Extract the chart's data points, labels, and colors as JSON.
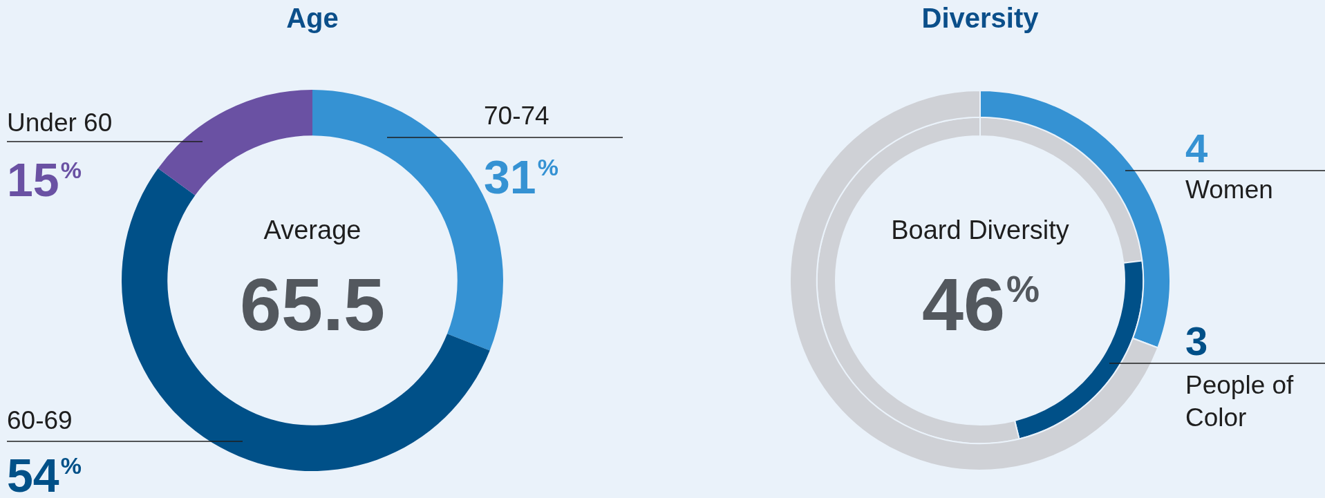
{
  "chart_data": [
    {
      "type": "donut",
      "title": "Age",
      "categories": [
        "70-74",
        "60-69",
        "Under 60"
      ],
      "values": [
        31,
        54,
        15
      ],
      "colors": [
        "#3592d3",
        "#005088",
        "#6a51a3"
      ],
      "value_labels": [
        "31%",
        "54%",
        "15%"
      ],
      "annotations": [
        "Average",
        "65.5"
      ]
    },
    {
      "type": "donut",
      "title": "Diversity",
      "series": [
        {
          "name": "Women",
          "values": [
            4,
            9
          ],
          "colors": [
            "#3592d3",
            "#cfd1d6"
          ],
          "value_labels": [
            "4",
            null
          ]
        },
        {
          "name": "People of Color",
          "values": [
            3,
            3,
            7
          ],
          "colors": [
            "#cfd1d6",
            "#005088",
            "#cfd1d6"
          ],
          "value_labels": [
            null,
            "3",
            null
          ]
        }
      ],
      "annotations": [
        "Board Diversity",
        "46%"
      ]
    }
  ]
}
